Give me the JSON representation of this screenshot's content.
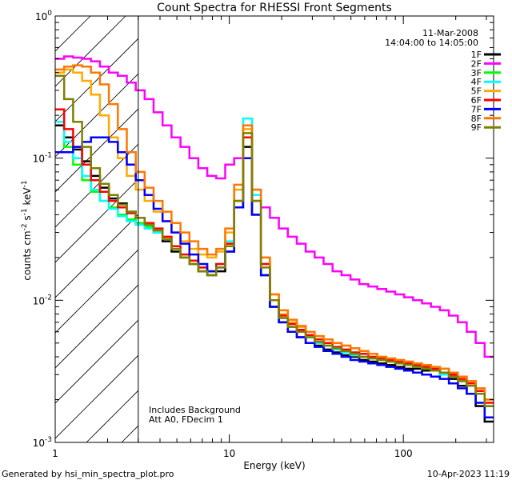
{
  "chart_data": {
    "type": "line",
    "title": "Count Spectra for RHESSI Front Segments",
    "xlabel": "Energy (keV)",
    "ylabel_parts": {
      "a": "counts cm",
      "b": "-2",
      "c": " s",
      "d": "-1",
      "e": " keV",
      "f": "-1"
    },
    "xlim": [
      1,
      330
    ],
    "ylim": [
      0.001,
      1
    ],
    "xscale": "log",
    "yscale": "log",
    "x_ticks": [
      {
        "v": 1,
        "label": "1"
      },
      {
        "v": 10,
        "label": "10"
      },
      {
        "v": 100,
        "label": "100"
      }
    ],
    "y_ticks": [
      {
        "v": 1,
        "base": "10",
        "exp": "0"
      },
      {
        "v": 0.1,
        "base": "10",
        "exp": "-1"
      },
      {
        "v": 0.01,
        "base": "10",
        "exp": "-2"
      },
      {
        "v": 0.001,
        "base": "10",
        "exp": "-3"
      }
    ],
    "date": "11-Mar-2008",
    "time_range": "14:04:00 to 14:05:00",
    "annotations": [
      "Includes Background",
      "Att A0, FDecim 1"
    ],
    "shaded_region_max_kev": 3,
    "legend_position": "top-right",
    "series": [
      {
        "name": "1F",
        "color": "#000000",
        "values": [
          0.17,
          0.14,
          0.115,
          0.095,
          0.075,
          0.062,
          0.052,
          0.048,
          0.042,
          0.038,
          0.034,
          0.03,
          0.026,
          0.022,
          0.02,
          0.018,
          0.016,
          0.015,
          0.016,
          0.022,
          0.045,
          0.12,
          0.04,
          0.015,
          0.009,
          0.007,
          0.006,
          0.0055,
          0.005,
          0.0048,
          0.0045,
          0.0043,
          0.0041,
          0.004,
          0.0038,
          0.0037,
          0.0036,
          0.0035,
          0.0034,
          0.0033,
          0.0033,
          0.0032,
          0.0032,
          0.003,
          0.0028,
          0.0025,
          0.0022,
          0.0018,
          0.0014
        ]
      },
      {
        "name": "2F",
        "color": "#ff00ff",
        "values": [
          0.5,
          0.52,
          0.51,
          0.5,
          0.48,
          0.44,
          0.4,
          0.38,
          0.34,
          0.3,
          0.26,
          0.21,
          0.17,
          0.14,
          0.12,
          0.1,
          0.085,
          0.075,
          0.072,
          0.09,
          0.1,
          0.14,
          0.06,
          0.045,
          0.038,
          0.032,
          0.028,
          0.025,
          0.022,
          0.02,
          0.018,
          0.016,
          0.015,
          0.014,
          0.013,
          0.0125,
          0.012,
          0.0115,
          0.011,
          0.0105,
          0.01,
          0.0095,
          0.009,
          0.0085,
          0.0078,
          0.007,
          0.006,
          0.005,
          0.004
        ]
      },
      {
        "name": "3F",
        "color": "#00ff00",
        "values": [
          0.18,
          0.12,
          0.09,
          0.07,
          0.058,
          0.05,
          0.045,
          0.04,
          0.037,
          0.035,
          0.033,
          0.03,
          0.027,
          0.023,
          0.02,
          0.018,
          0.017,
          0.016,
          0.018,
          0.025,
          0.05,
          0.14,
          0.05,
          0.018,
          0.01,
          0.0075,
          0.0065,
          0.006,
          0.0055,
          0.005,
          0.0048,
          0.0045,
          0.0043,
          0.0041,
          0.004,
          0.0039,
          0.0038,
          0.0037,
          0.0036,
          0.0035,
          0.0034,
          0.0033,
          0.0032,
          0.003,
          0.0029,
          0.0027,
          0.0025,
          0.0022,
          0.0018
        ]
      },
      {
        "name": "4F",
        "color": "#00ffff",
        "values": [
          0.18,
          0.13,
          0.1,
          0.075,
          0.06,
          0.05,
          0.044,
          0.039,
          0.036,
          0.034,
          0.032,
          0.03,
          0.027,
          0.024,
          0.021,
          0.019,
          0.017,
          0.016,
          0.018,
          0.026,
          0.06,
          0.19,
          0.055,
          0.018,
          0.01,
          0.0075,
          0.0065,
          0.006,
          0.0055,
          0.005,
          0.0048,
          0.0045,
          0.0043,
          0.0041,
          0.004,
          0.0039,
          0.0038,
          0.0037,
          0.0036,
          0.0035,
          0.0034,
          0.0033,
          0.0032,
          0.003,
          0.0029,
          0.0027,
          0.0025,
          0.0022,
          0.0018
        ]
      },
      {
        "name": "5F",
        "color": "#ffaa00",
        "values": [
          0.4,
          0.42,
          0.4,
          0.35,
          0.28,
          0.2,
          0.14,
          0.1,
          0.075,
          0.06,
          0.05,
          0.042,
          0.036,
          0.03,
          0.026,
          0.023,
          0.021,
          0.02,
          0.022,
          0.03,
          0.06,
          0.16,
          0.06,
          0.02,
          0.011,
          0.008,
          0.007,
          0.0065,
          0.006,
          0.0056,
          0.0053,
          0.005,
          0.0048,
          0.0046,
          0.0044,
          0.0042,
          0.004,
          0.0039,
          0.0038,
          0.0037,
          0.0036,
          0.0035,
          0.0034,
          0.0033,
          0.0031,
          0.0029,
          0.0027,
          0.0024,
          0.002
        ]
      },
      {
        "name": "6F",
        "color": "#ff0000",
        "values": [
          0.22,
          0.16,
          0.12,
          0.09,
          0.07,
          0.058,
          0.05,
          0.045,
          0.041,
          0.038,
          0.035,
          0.032,
          0.028,
          0.024,
          0.021,
          0.019,
          0.017,
          0.016,
          0.018,
          0.025,
          0.05,
          0.14,
          0.05,
          0.018,
          0.01,
          0.0078,
          0.0068,
          0.0062,
          0.0057,
          0.0053,
          0.005,
          0.0047,
          0.0045,
          0.0043,
          0.0042,
          0.004,
          0.0039,
          0.0038,
          0.0037,
          0.0036,
          0.0035,
          0.0034,
          0.0033,
          0.0031,
          0.003,
          0.0028,
          0.0026,
          0.0023,
          0.0019
        ]
      },
      {
        "name": "7F",
        "color": "#0000ff",
        "values": [
          0.11,
          0.11,
          0.12,
          0.13,
          0.14,
          0.14,
          0.13,
          0.11,
          0.09,
          0.07,
          0.055,
          0.044,
          0.036,
          0.03,
          0.025,
          0.021,
          0.018,
          0.016,
          0.017,
          0.022,
          0.045,
          0.1,
          0.04,
          0.015,
          0.009,
          0.007,
          0.006,
          0.0055,
          0.005,
          0.0047,
          0.0044,
          0.0042,
          0.004,
          0.0038,
          0.0037,
          0.0036,
          0.0035,
          0.0034,
          0.0033,
          0.0032,
          0.0031,
          0.003,
          0.0029,
          0.0028,
          0.0026,
          0.0024,
          0.0022,
          0.0019,
          0.0015
        ]
      },
      {
        "name": "8F",
        "color": "#ff7700",
        "values": [
          0.42,
          0.44,
          0.45,
          0.44,
          0.4,
          0.33,
          0.24,
          0.16,
          0.11,
          0.08,
          0.062,
          0.05,
          0.042,
          0.035,
          0.03,
          0.026,
          0.023,
          0.021,
          0.023,
          0.032,
          0.065,
          0.17,
          0.06,
          0.02,
          0.011,
          0.0085,
          0.0073,
          0.0066,
          0.006,
          0.0056,
          0.0053,
          0.005,
          0.0048,
          0.0046,
          0.0044,
          0.0042,
          0.004,
          0.0039,
          0.0038,
          0.0037,
          0.0036,
          0.0035,
          0.0034,
          0.0033,
          0.0031,
          0.0029,
          0.0027,
          0.0024,
          0.002
        ]
      },
      {
        "name": "9F",
        "color": "#808000",
        "values": [
          0.38,
          0.26,
          0.18,
          0.12,
          0.085,
          0.066,
          0.055,
          0.047,
          0.042,
          0.038,
          0.034,
          0.031,
          0.027,
          0.023,
          0.02,
          0.018,
          0.016,
          0.015,
          0.017,
          0.024,
          0.05,
          0.15,
          0.05,
          0.017,
          0.01,
          0.0075,
          0.0065,
          0.006,
          0.0055,
          0.0051,
          0.0048,
          0.0046,
          0.0044,
          0.0042,
          0.004,
          0.0039,
          0.0038,
          0.0037,
          0.0036,
          0.0035,
          0.0034,
          0.0033,
          0.0032,
          0.0031,
          0.0029,
          0.0027,
          0.0025,
          0.0022,
          0.0018
        ]
      }
    ]
  },
  "footer": {
    "left": "Generated by hsi_min_spectra_plot.pro",
    "right": "10-Apr-2023 11:19"
  }
}
